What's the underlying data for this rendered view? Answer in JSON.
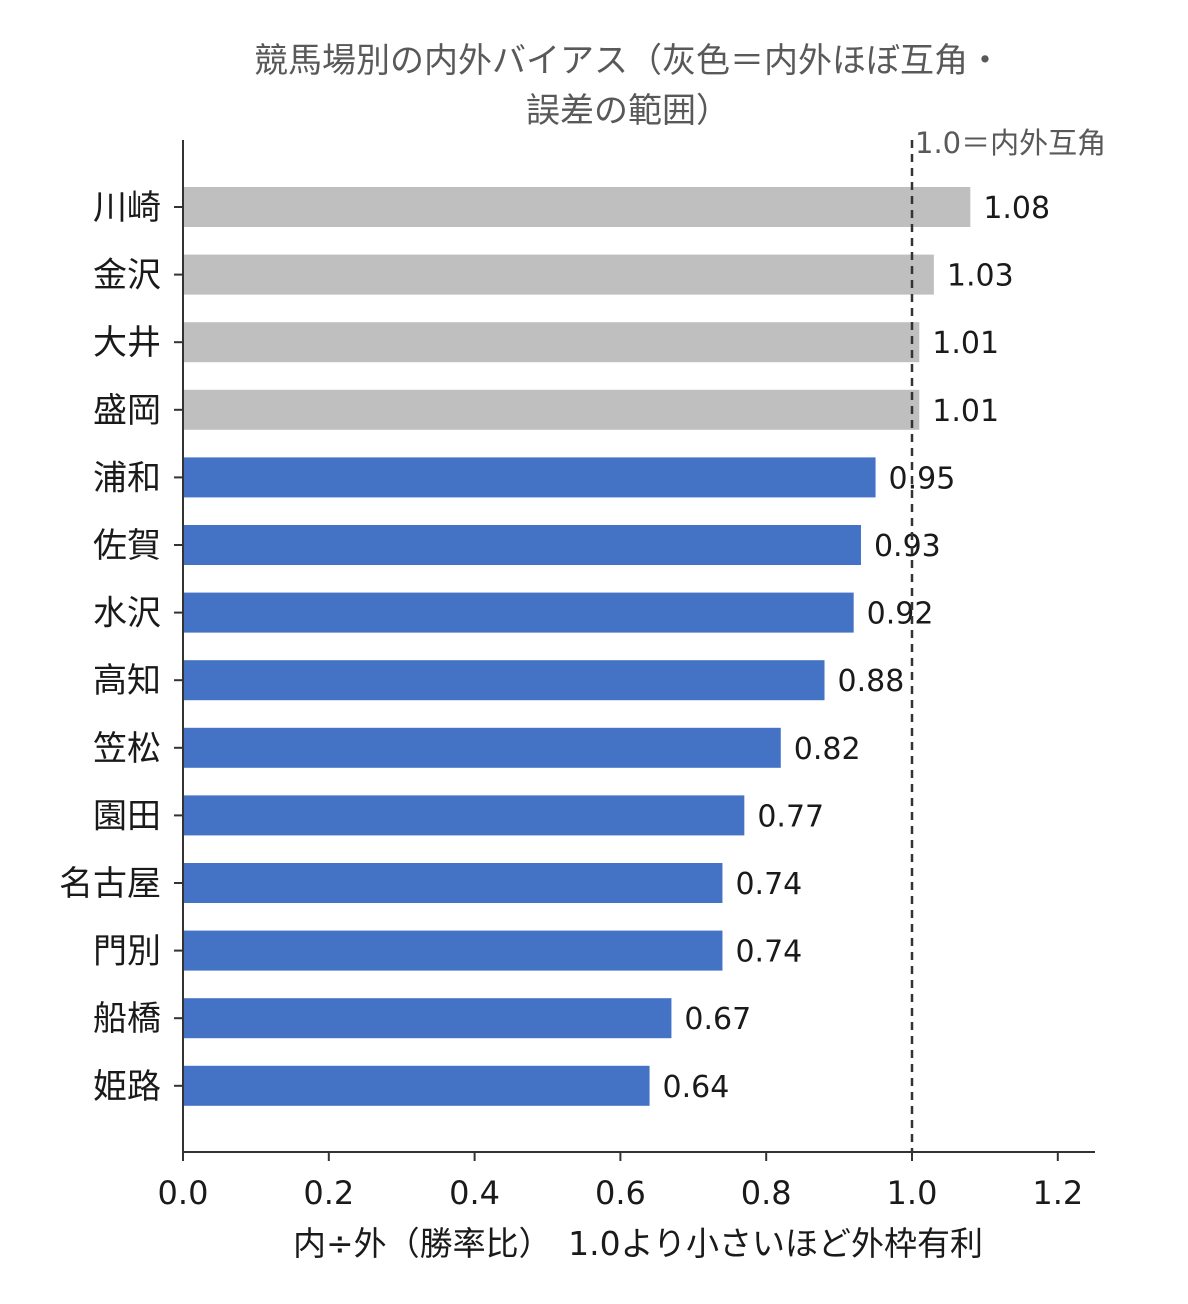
{
  "chart_data": {
    "type": "bar",
    "orientation": "horizontal",
    "title_lines": [
      "競馬場別の内外バイアス（灰色＝内外ほぼ互角・",
      "誤差の範囲）"
    ],
    "xlabel": "内÷外（勝率比）　1.0より小さいほど外枠有利",
    "ylabel": "",
    "xlim": [
      0,
      1.25
    ],
    "xticks": [
      "0.0",
      "0.2",
      "0.4",
      "0.6",
      "0.8",
      "1.0",
      "1.2"
    ],
    "xtick_values": [
      0.0,
      0.2,
      0.4,
      0.6,
      0.8,
      1.0,
      1.2
    ],
    "categories": [
      "川崎",
      "金沢",
      "大井",
      "盛岡",
      "浦和",
      "佐賀",
      "水沢",
      "高知",
      "笠松",
      "園田",
      "名古屋",
      "門別",
      "船橋",
      "姫路"
    ],
    "values": [
      1.08,
      1.03,
      1.01,
      1.01,
      0.95,
      0.93,
      0.92,
      0.88,
      0.82,
      0.77,
      0.74,
      0.74,
      0.67,
      0.64
    ],
    "value_labels": [
      "1.08",
      "1.03",
      "1.01",
      "1.01",
      "0.95",
      "0.93",
      "0.92",
      "0.88",
      "0.82",
      "0.77",
      "0.74",
      "0.74",
      "0.67",
      "0.64"
    ],
    "bar_groups": [
      "neutral",
      "neutral",
      "neutral",
      "neutral",
      "outside",
      "outside",
      "outside",
      "outside",
      "outside",
      "outside",
      "outside",
      "outside",
      "outside",
      "outside"
    ],
    "colors": {
      "neutral": "#bfbfbf",
      "outside": "#4472c4",
      "axis": "#333333",
      "reference_line": "#333333"
    },
    "reference_line": {
      "x": 1.0,
      "label": "1.0＝内外互角",
      "style": "dashed"
    },
    "grid": false,
    "legend": "none"
  }
}
